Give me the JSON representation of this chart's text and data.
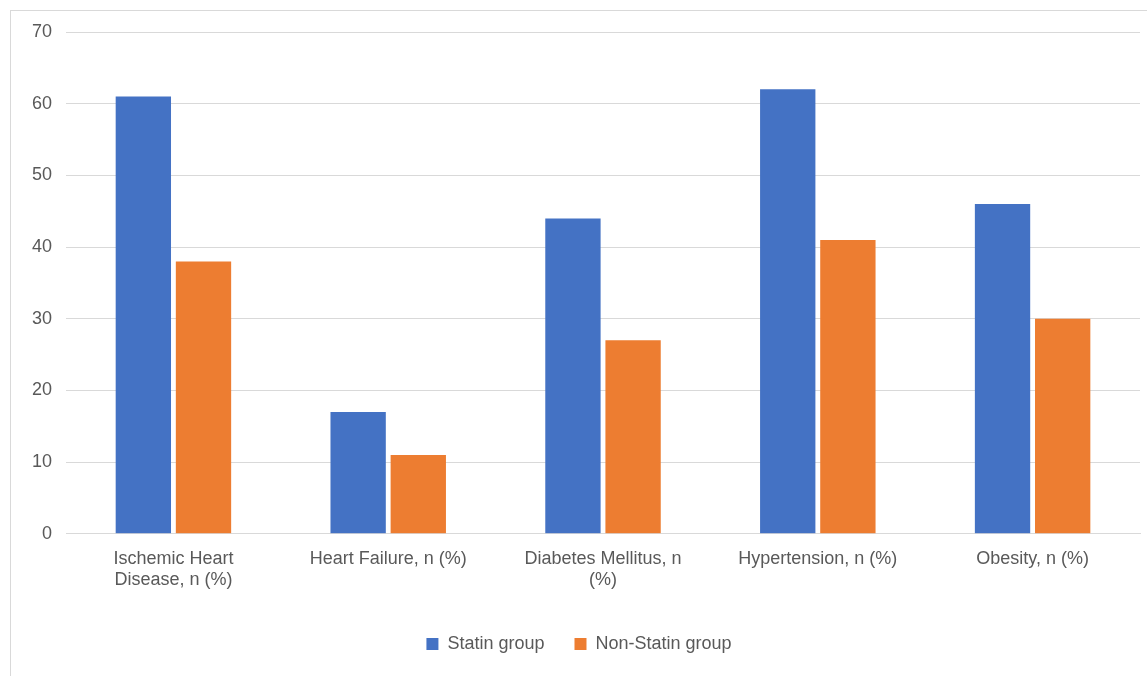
{
  "chart_data": {
    "type": "bar",
    "categories": [
      "Ischemic Heart Disease, n (%)",
      "Heart Failure, n (%)",
      "Diabetes Mellitus, n (%)",
      "Hypertension, n (%)",
      "Obesity, n (%)"
    ],
    "series": [
      {
        "name": "Statin group",
        "color": "#4472c4",
        "values": [
          61,
          17,
          44,
          62,
          46
        ]
      },
      {
        "name": "Non-Statin group",
        "color": "#ed7d31",
        "values": [
          38,
          11,
          27,
          41,
          30
        ]
      }
    ],
    "ylim": [
      0,
      70
    ],
    "yticks": [
      0,
      10,
      20,
      30,
      40,
      50,
      60,
      70
    ],
    "grid": "y",
    "legend": "bottom"
  }
}
